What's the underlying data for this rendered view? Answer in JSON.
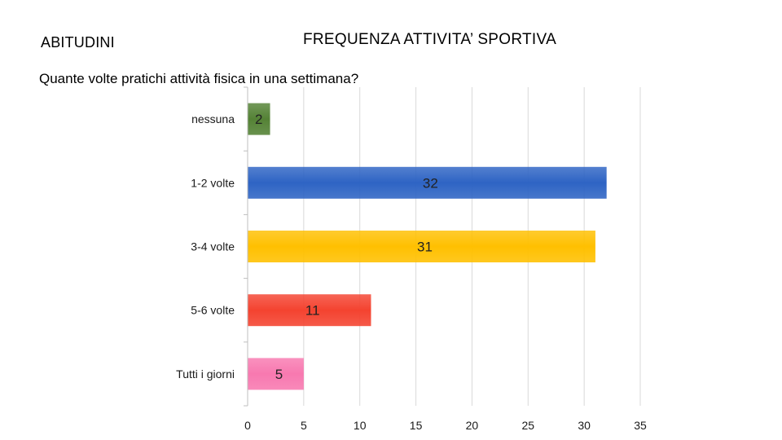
{
  "header": {
    "section": "ABITUDINI",
    "title": "FREQUENZA ATTIVITA’ SPORTIVA"
  },
  "question": "Quante volte pratichi attività fisica in una settimana?",
  "chart_data": {
    "type": "bar",
    "orientation": "horizontal",
    "title": "",
    "xlabel": "",
    "ylabel": "",
    "categories": [
      "nessuna",
      "1-2 volte",
      "3-4 volte",
      "5-6 volte",
      "Tutti i giorni"
    ],
    "values": [
      2,
      32,
      31,
      11,
      5
    ],
    "data_labels": [
      "2",
      "32",
      "31",
      "11",
      "5"
    ],
    "colors": [
      "#548235",
      "#2e64c4",
      "#ffc000",
      "#f44330",
      "#f879b0"
    ],
    "xlim": [
      0,
      35
    ],
    "xticks": [
      "0",
      "5",
      "10",
      "15",
      "20",
      "25",
      "30",
      "35"
    ],
    "grid": true,
    "legend": "none"
  }
}
